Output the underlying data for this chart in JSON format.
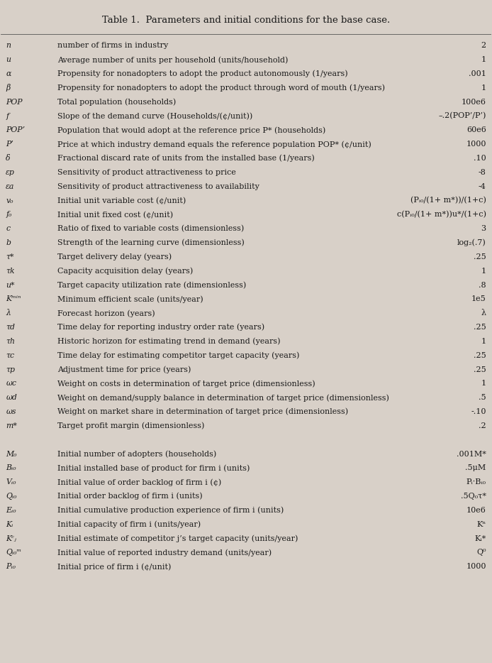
{
  "title": "Table 1.  Parameters and initial conditions for the base case.",
  "background_color": "#d8d0c8",
  "rows": [
    {
      "symbol": "n",
      "description": "number of firms in industry",
      "value": "2"
    },
    {
      "symbol": "u",
      "description": "Average number of units per household (units/household)",
      "value": "1"
    },
    {
      "symbol": "α",
      "description": "Propensity for nonadopters to adopt the product autonomously (1/years)",
      "value": ".001"
    },
    {
      "symbol": "β",
      "description": "Propensity for nonadopters to adopt the product through word of mouth (1/years)",
      "value": "1"
    },
    {
      "symbol": "POP",
      "description": "Total population (households)",
      "value": "100e6"
    },
    {
      "symbol": "f",
      "description": "Slope of the demand curve (Households/(¢/unit))",
      "value": "–.2(POP’/P’)"
    },
    {
      "symbol": "POP’",
      "description": "Population that would adopt at the reference price P* (households)",
      "value": "60e6"
    },
    {
      "symbol": "P’",
      "description": "Price at which industry demand equals the reference population POP* (¢/unit)",
      "value": "1000"
    },
    {
      "symbol": "δ",
      "description": "Fractional discard rate of units from the installed base (1/years)",
      "value": ".10"
    },
    {
      "symbol": "εp",
      "description": "Sensitivity of product attractiveness to price",
      "value": "-8"
    },
    {
      "symbol": "εa",
      "description": "Sensitivity of product attractiveness to availability",
      "value": "-4"
    },
    {
      "symbol": "v₀",
      "description": "Initial unit variable cost (¢/unit)",
      "value": "(Pᵢ₀/(1+ m*))/(1+c)"
    },
    {
      "symbol": "f₀",
      "description": "Initial unit fixed cost (¢/unit)",
      "value": "c(Pᵢ₀/(1+ m*))u*/(1+c)"
    },
    {
      "symbol": "c",
      "description": "Ratio of fixed to variable costs (dimensionless)",
      "value": "3"
    },
    {
      "symbol": "b",
      "description": "Strength of the learning curve (dimensionless)",
      "value": "log₂(.7)"
    },
    {
      "symbol": "τ*",
      "description": "Target delivery delay (years)",
      "value": ".25"
    },
    {
      "symbol": "τk",
      "description": "Capacity acquisition delay (years)",
      "value": "1"
    },
    {
      "symbol": "u*",
      "description": "Target capacity utilization rate (dimensionless)",
      "value": ".8"
    },
    {
      "symbol": "Kᵐⁱⁿ",
      "description": "Minimum efficient scale (units/year)",
      "value": "1e5"
    },
    {
      "symbol": "λ",
      "description": "Forecast horizon (years)",
      "value": "λ"
    },
    {
      "symbol": "τd",
      "description": "Time delay for reporting industry order rate (years)",
      "value": ".25"
    },
    {
      "symbol": "τh",
      "description": "Historic horizon for estimating trend in demand (years)",
      "value": "1"
    },
    {
      "symbol": "τc",
      "description": "Time delay for estimating competitor target capacity (years)",
      "value": ".25"
    },
    {
      "symbol": "τp",
      "description": "Adjustment time for price (years)",
      "value": ".25"
    },
    {
      "symbol": "ωc",
      "description": "Weight on costs in determination of target price (dimensionless)",
      "value": "1"
    },
    {
      "symbol": "ωd",
      "description": "Weight on demand/supply balance in determination of target price (dimensionless)",
      "value": ".5"
    },
    {
      "symbol": "ωs",
      "description": "Weight on market share in determination of target price (dimensionless)",
      "value": "-.10"
    },
    {
      "symbol": "m*",
      "description": "Target profit margin (dimensionless)",
      "value": ".2"
    },
    {
      "symbol": "",
      "description": "",
      "value": ""
    },
    {
      "symbol": "M₀",
      "description": "Initial number of adopters (households)",
      "value": ".001M*"
    },
    {
      "symbol": "Bᵢ₀",
      "description": "Initial installed base of product for firm i (units)",
      "value": ".5μM"
    },
    {
      "symbol": "Vᵢ₀",
      "description": "Initial value of order backlog of firm i (¢)",
      "value": "Pᵢ·Bᵢ₀"
    },
    {
      "symbol": "Qᵢ₀",
      "description": "Initial order backlog of firm i (units)",
      "value": ".5Q₀τ*"
    },
    {
      "symbol": "Eᵢ₀",
      "description": "Initial cumulative production experience of firm i (units)",
      "value": "10e6"
    },
    {
      "symbol": "Kᵢ",
      "description": "Initial capacity of firm i (units/year)",
      "value": "Kⁿ"
    },
    {
      "symbol": "Kᶜⱼ",
      "description": "Initial estimate of competitor j’s target capacity (units/year)",
      "value": "Kᵢ*"
    },
    {
      "symbol": "Qᵢ₀ᵐ",
      "description": "Initial value of reported industry demand (units/year)",
      "value": "Q⁰"
    },
    {
      "symbol": "Pᵢ₀",
      "description": "Initial price of firm i (¢/unit)",
      "value": "1000"
    }
  ]
}
